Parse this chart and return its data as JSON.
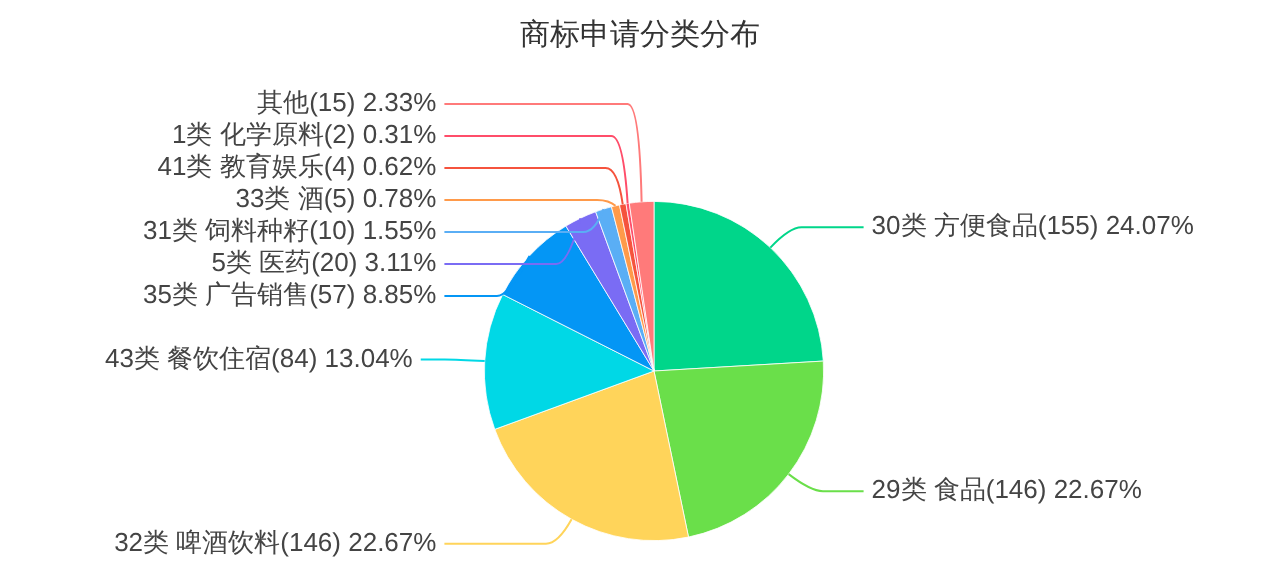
{
  "chart_data": {
    "type": "pie",
    "title": "商标申请分类分布",
    "categories": [
      "30类 方便食品",
      "29类 食品",
      "32类 啤酒饮料",
      "43类 餐饮住宿",
      "35类 广告销售",
      "5类 医药",
      "31类 饲料种籽",
      "33类 酒",
      "41类 教育娱乐",
      "1类 化学原料",
      "其他"
    ],
    "values": [
      155,
      146,
      146,
      84,
      57,
      20,
      10,
      5,
      4,
      2,
      15
    ],
    "value_labels": [
      "(155) 24.07%",
      "(146) 22.67%",
      "(146) 22.67%",
      "(84) 13.04%",
      "(57) 8.85%",
      "(20) 3.11%",
      "(10) 1.55%",
      "(5) 0.78%",
      "(4) 0.62%",
      "(2) 0.31%",
      "(15) 2.33%"
    ],
    "colors": [
      "#00d68a",
      "#6adf4a",
      "#ffd45a",
      "#00d8e6",
      "#0496f5",
      "#7a6cf4",
      "#5aaef5",
      "#ff9a4a",
      "#f5533d",
      "#ff4d6a",
      "#ff7a7a"
    ],
    "legend": false
  }
}
